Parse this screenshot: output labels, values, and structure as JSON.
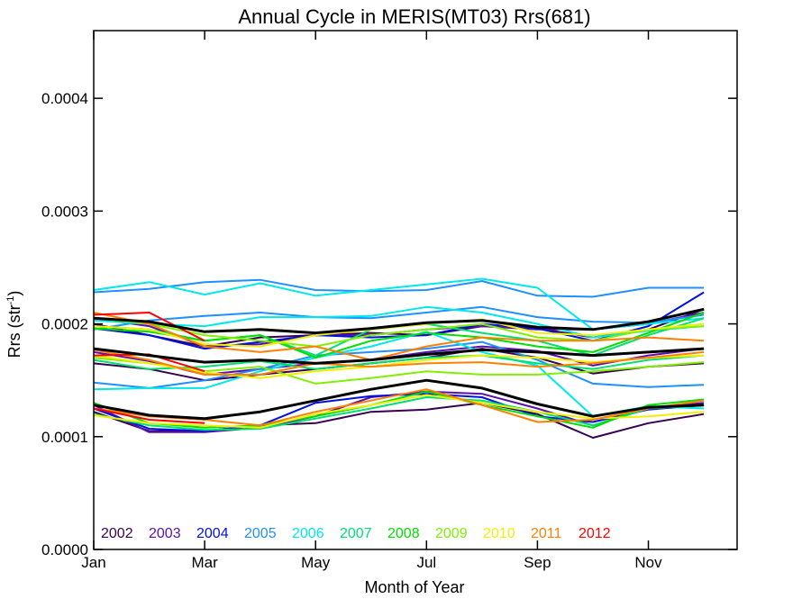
{
  "chart_data": {
    "type": "line",
    "title": "Annual Cycle in MERIS(MT03) Rrs(681)",
    "xlabel": "Month of Year",
    "ylabel": "Rrs (str",
    "ylabel_sup": "-1",
    "ylabel_close": ")",
    "xlim": [
      1,
      12.6
    ],
    "ylim": [
      0,
      0.00046
    ],
    "x_ticks": [
      {
        "value": 1,
        "label": "Jan"
      },
      {
        "value": 3,
        "label": "Mar"
      },
      {
        "value": 5,
        "label": "May"
      },
      {
        "value": 7,
        "label": "Jul"
      },
      {
        "value": 9,
        "label": "Sep"
      },
      {
        "value": 11,
        "label": "Nov"
      }
    ],
    "y_ticks": [
      {
        "value": 0.0,
        "label": "0.0000"
      },
      {
        "value": 0.0001,
        "label": "0.0001"
      },
      {
        "value": 0.0002,
        "label": "0.0002"
      },
      {
        "value": 0.0003,
        "label": "0.0003"
      },
      {
        "value": 0.0004,
        "label": "0.0004"
      }
    ],
    "x": [
      1,
      2,
      3,
      4,
      5,
      6,
      7,
      8,
      9,
      10,
      11,
      12
    ],
    "legend": [
      {
        "year": "2002",
        "color": "#3a0050"
      },
      {
        "year": "2003",
        "color": "#5a10b0"
      },
      {
        "year": "2004",
        "color": "#0010e0"
      },
      {
        "year": "2005",
        "color": "#1e90ff"
      },
      {
        "year": "2006",
        "color": "#00e8e8"
      },
      {
        "year": "2007",
        "color": "#00e070"
      },
      {
        "year": "2008",
        "color": "#00e000"
      },
      {
        "year": "2009",
        "color": "#80f000"
      },
      {
        "year": "2010",
        "color": "#f0f000"
      },
      {
        "year": "2011",
        "color": "#ff8000"
      },
      {
        "year": "2012",
        "color": "#ff0000"
      }
    ],
    "series": [
      {
        "color": "#3a0050",
        "values": [
          0.000122,
          0.000105,
          0.000105,
          0.00011,
          0.000112,
          0.000122,
          0.000124,
          0.00013,
          0.00012,
          9.9e-05,
          0.000112,
          0.00012
        ]
      },
      {
        "color": "#3a0050",
        "values": [
          0.000165,
          0.00016,
          0.00015,
          0.000155,
          0.00016,
          0.000165,
          0.00017,
          0.000178,
          0.00017,
          0.000156,
          0.000162,
          0.000165
        ]
      },
      {
        "color": "#3a0050",
        "values": [
          0.0002,
          0.00019,
          0.00018,
          0.000188,
          0.00019,
          0.000192,
          0.00019,
          0.000198,
          0.000196,
          0.000188,
          0.000195,
          0.000213
        ]
      },
      {
        "color": "#5a10b0",
        "values": [
          0.000128,
          0.000104,
          0.000104,
          0.000108,
          0.000118,
          0.000135,
          0.00014,
          0.000138,
          0.000125,
          0.00011,
          0.000125,
          0.00013
        ]
      },
      {
        "color": "#5a10b0",
        "values": [
          0.000175,
          0.000167,
          0.000155,
          0.00016,
          0.000165,
          0.000168,
          0.000175,
          0.00018,
          0.000176,
          0.000163,
          0.000172,
          0.000178
        ]
      },
      {
        "color": "#5a10b0",
        "values": [
          0.000205,
          0.000198,
          0.00018,
          0.000182,
          0.00019,
          0.00019,
          0.000195,
          0.000198,
          0.000195,
          0.000195,
          0.0002,
          0.00021
        ]
      },
      {
        "color": "#0010e0",
        "values": [
          0.000125,
          0.000107,
          0.000105,
          0.00011,
          0.00013,
          0.000136,
          0.000138,
          0.000135,
          0.000118,
          0.000113,
          0.000124,
          0.000128
        ]
      },
      {
        "color": "#0010e0",
        "values": [
          0.000196,
          0.00019,
          0.000178,
          0.000184,
          0.00019,
          0.000188,
          0.00019,
          0.0002,
          0.000196,
          0.000185,
          0.000198,
          0.000228
        ]
      },
      {
        "color": "#1e90ff",
        "values": [
          0.000148,
          0.000143,
          0.00015,
          0.00016,
          0.000172,
          0.000175,
          0.000178,
          0.000184,
          0.000168,
          0.000147,
          0.000144,
          0.000146
        ]
      },
      {
        "color": "#1e90ff",
        "values": [
          0.000195,
          0.000203,
          0.000207,
          0.00021,
          0.000206,
          0.000205,
          0.00021,
          0.000215,
          0.000206,
          0.000202,
          0.000201,
          0.000208
        ]
      },
      {
        "color": "#1e90ff",
        "values": [
          0.000228,
          0.000231,
          0.000237,
          0.000239,
          0.00023,
          0.000229,
          0.00023,
          0.000238,
          0.000225,
          0.000224,
          0.000232,
          0.000232
        ]
      },
      {
        "color": "#00e8e8",
        "values": [
          0.00023,
          0.000237,
          0.000226,
          0.000236,
          0.000225,
          0.00023,
          0.000235,
          0.00024,
          0.000232,
          0.000195,
          0.0002,
          0.000205
        ]
      },
      {
        "color": "#00e8e8",
        "values": [
          0.000142,
          0.000143,
          0.000143,
          0.000158,
          0.00017,
          0.00018,
          0.000193,
          0.000175,
          0.000163,
          0.000118,
          0.000127,
          0.000125
        ]
      },
      {
        "color": "#00e8e8",
        "values": [
          0.000203,
          0.0002,
          0.000198,
          0.000206,
          0.000206,
          0.000207,
          0.000215,
          0.00021,
          0.0002,
          0.000188,
          0.000194,
          0.000198
        ]
      },
      {
        "color": "#00e070",
        "values": [
          0.000168,
          0.00016,
          0.000162,
          0.000167,
          0.00016,
          0.000165,
          0.00017,
          0.000172,
          0.000165,
          0.00016,
          0.000168,
          0.000172
        ]
      },
      {
        "color": "#00e070",
        "values": [
          0.00012,
          0.00011,
          0.000106,
          0.000107,
          0.000116,
          0.000125,
          0.000135,
          0.000132,
          0.000122,
          0.00011,
          0.000125,
          0.000128
        ]
      },
      {
        "color": "#00e070",
        "values": [
          0.000198,
          0.000195,
          0.000185,
          0.00019,
          0.000172,
          0.000195,
          0.0002,
          0.000192,
          0.000185,
          0.000172,
          0.00019,
          0.000205
        ]
      },
      {
        "color": "#00e000",
        "values": [
          0.000196,
          0.000193,
          0.000185,
          0.00019,
          0.00017,
          0.000185,
          0.000192,
          0.000188,
          0.00018,
          0.000175,
          0.000192,
          0.00021
        ]
      },
      {
        "color": "#00e000",
        "values": [
          0.00013,
          0.000112,
          0.000108,
          0.00011,
          0.000118,
          0.000128,
          0.00014,
          0.000128,
          0.000118,
          0.000108,
          0.000128,
          0.000133
        ]
      },
      {
        "color": "#80f000",
        "values": [
          0.00017,
          0.000165,
          0.000158,
          0.000162,
          0.000147,
          0.000152,
          0.000158,
          0.000155,
          0.000155,
          0.000158,
          0.000162,
          0.000166
        ]
      },
      {
        "color": "#80f000",
        "values": [
          0.000205,
          0.0002,
          0.00019,
          0.000185,
          0.00018,
          0.00019,
          0.000195,
          0.0002,
          0.000188,
          0.000185,
          0.000195,
          0.000198
        ]
      },
      {
        "color": "#f0f000",
        "values": [
          0.000119,
          0.000112,
          0.00011,
          0.000108,
          0.00012,
          0.000128,
          0.000137,
          0.00013,
          0.000122,
          0.000116,
          0.000118,
          0.000122
        ]
      },
      {
        "color": "#f0f000",
        "values": [
          0.000172,
          0.000165,
          0.000157,
          0.000152,
          0.000158,
          0.000162,
          0.000168,
          0.000172,
          0.00017,
          0.000166,
          0.00017,
          0.000172
        ]
      },
      {
        "color": "#f0f000",
        "values": [
          0.000198,
          0.000195,
          0.000182,
          0.00018,
          0.00019,
          0.000195,
          0.0002,
          0.000204,
          0.000192,
          0.00019,
          0.000195,
          0.0002
        ]
      },
      {
        "color": "#ff8000",
        "values": [
          0.000125,
          0.000118,
          0.000115,
          0.00011,
          0.000122,
          0.000132,
          0.000142,
          0.000128,
          0.000113,
          0.000115,
          0.000125,
          0.000132
        ]
      },
      {
        "color": "#ff8000",
        "values": [
          0.00021,
          0.0002,
          0.00018,
          0.000175,
          0.00018,
          0.000168,
          0.00018,
          0.000188,
          0.000185,
          0.000185,
          0.000188,
          0.000185
        ]
      },
      {
        "color": "#ff8000",
        "values": [
          0.000177,
          0.000168,
          0.000155,
          0.000155,
          0.000165,
          0.000162,
          0.000165,
          0.000166,
          0.000162,
          0.000165,
          0.00017,
          0.000175
        ]
      },
      {
        "color": "#ff0000",
        "values": [
          0.000208,
          0.00021,
          0.000185,
          null,
          null,
          null,
          null,
          null,
          null,
          null,
          null,
          null
        ]
      },
      {
        "color": "#ff0000",
        "values": [
          0.000172,
          0.000173,
          0.000158,
          null,
          null,
          null,
          null,
          null,
          null,
          null,
          null,
          null
        ]
      },
      {
        "color": "#ff0000",
        "values": [
          0.000125,
          0.000115,
          0.000112,
          null,
          null,
          null,
          null,
          null,
          null,
          null,
          null,
          null
        ]
      },
      {
        "color": "#000000",
        "values": [
          0.000205,
          0.000202,
          0.000193,
          0.000195,
          0.000192,
          0.000196,
          0.000201,
          0.000203,
          0.000197,
          0.000195,
          0.000202,
          0.000213
        ]
      },
      {
        "color": "#000000",
        "values": [
          0.000178,
          0.000172,
          0.000166,
          0.000168,
          0.000165,
          0.000168,
          0.000173,
          0.000177,
          0.000175,
          0.000172,
          0.000175,
          0.000178
        ]
      },
      {
        "color": "#000000",
        "values": [
          0.000128,
          0.000119,
          0.000116,
          0.000122,
          0.000132,
          0.000142,
          0.00015,
          0.000143,
          0.000129,
          0.000118,
          0.000126,
          0.000128
        ]
      }
    ]
  }
}
